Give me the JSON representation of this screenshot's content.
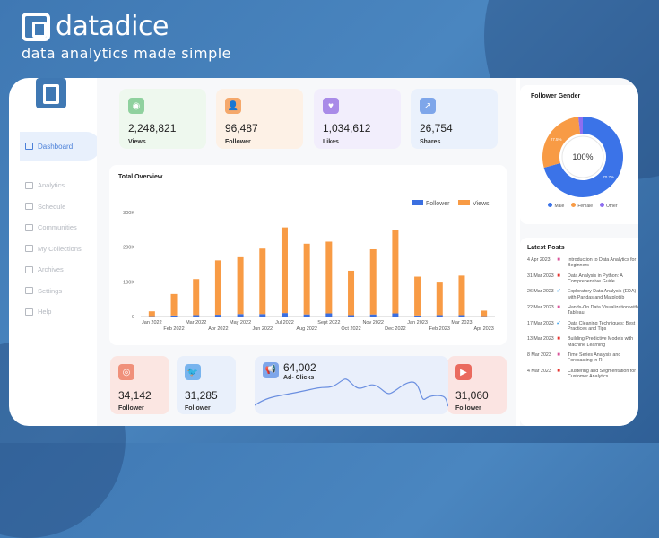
{
  "brand": {
    "name": "datadice",
    "tagline": "data analytics made simple"
  },
  "sidebar": {
    "items": [
      {
        "label": "Dashboard",
        "active": true
      },
      {
        "label": "Analytics"
      },
      {
        "label": "Schedule"
      },
      {
        "label": "Communities"
      },
      {
        "label": "My Collections"
      },
      {
        "label": "Archives"
      },
      {
        "label": "Settings"
      },
      {
        "label": "Help"
      }
    ]
  },
  "stats": [
    {
      "value": "2,248,821",
      "label": "Views",
      "icon": "eye-icon",
      "bg": "#eef8ee",
      "accent": "#8fd19e"
    },
    {
      "value": "96,487",
      "label": "Follower",
      "icon": "user-icon",
      "bg": "#fdf1e6",
      "accent": "#f5a86b"
    },
    {
      "value": "1,034,612",
      "label": "Likes",
      "icon": "heart-icon",
      "bg": "#f2eefc",
      "accent": "#a98be8"
    },
    {
      "value": "26,754",
      "label": "Shares",
      "icon": "share-icon",
      "bg": "#eaf1fc",
      "accent": "#7ea6ea"
    }
  ],
  "chart_data": {
    "type": "bar",
    "stacked": true,
    "title": "Total Overview",
    "categories": [
      "Jan 2022",
      "Feb 2022",
      "Mar 2022",
      "Apr 2022",
      "May 2022",
      "Jun 2022",
      "Jul 2022",
      "Aug 2022",
      "Sept 2022",
      "Oct 2022",
      "Nov 2022",
      "Dec 2022",
      "Jan 2023",
      "Feb 2023",
      "Mar 2023",
      "Apr 2023"
    ],
    "series": [
      {
        "name": "Follower",
        "color": "#3b6fe0",
        "values": [
          1000,
          3000,
          4000,
          5000,
          7000,
          7000,
          10000,
          6000,
          9000,
          4000,
          6000,
          9000,
          3000,
          4000,
          4000,
          1000
        ]
      },
      {
        "name": "Views",
        "color": "#f89b45",
        "values": [
          14000,
          62000,
          104000,
          157000,
          164000,
          189000,
          247000,
          204000,
          207000,
          128000,
          188000,
          241000,
          112000,
          94000,
          114000,
          16000
        ]
      }
    ],
    "yticks": [
      "0",
      "100K",
      "200K",
      "300K"
    ],
    "ylim": [
      0,
      300000
    ],
    "legend": "top-right",
    "grid": false
  },
  "socials": [
    {
      "value": "34,142",
      "label": "Follower",
      "icon": "instagram-icon",
      "bg": "#fbe6e2",
      "accent": "#f0907a"
    },
    {
      "value": "31,285",
      "label": "Follower",
      "icon": "twitter-icon",
      "bg": "#e9f0fb",
      "accent": "#78b4ee"
    },
    {
      "value": "31,060",
      "label": "Follower",
      "icon": "youtube-icon",
      "bg": "#fbe4e2",
      "accent": "#ea6a5e"
    }
  ],
  "ads": {
    "value": "64,002",
    "label": "Ad- Clicks",
    "icon": "megaphone-icon"
  },
  "gender": {
    "title": "Follower Gender",
    "center": "100%",
    "slices": [
      {
        "label": "Male",
        "value": 70.7,
        "color": "#3b73e8",
        "text": "70.7%"
      },
      {
        "label": "Female",
        "value": 27.5,
        "color": "#f89b45",
        "text": "27.5%"
      },
      {
        "label": "Other",
        "value": 1.8,
        "color": "#8e6ef0"
      }
    ]
  },
  "posts": {
    "title": "Latest Posts",
    "items": [
      {
        "date": "4 Apr 2023",
        "icon": "instagram-icon",
        "title": "Introduction to Data Analytics for Beginners"
      },
      {
        "date": "31 Mar 2023",
        "icon": "youtube-icon",
        "title": "Data Analysis in Python: A Comprehensive Guide"
      },
      {
        "date": "26 Mar 2023",
        "icon": "twitter-icon",
        "title": "Exploratory Data Analysis (EDA) with Pandas and Matplotlib"
      },
      {
        "date": "22 Mar 2023",
        "icon": "instagram-icon",
        "title": "Hands-On Data Visualization with Tableau"
      },
      {
        "date": "17 Mar 2023",
        "icon": "twitter-icon",
        "title": "Data Cleaning Techniques: Best Practices and Tips"
      },
      {
        "date": "13 Mar 2023",
        "icon": "youtube-icon",
        "title": "Building Predictive Models with Machine Learning"
      },
      {
        "date": "8 Mar 2023",
        "icon": "instagram-icon",
        "title": "Time Series Analysis and Forecasting in R"
      },
      {
        "date": "4 Mar 2023",
        "icon": "youtube-icon",
        "title": "Clustering and Segmentation for Customer Analytics"
      }
    ]
  }
}
